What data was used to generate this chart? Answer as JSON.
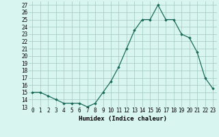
{
  "x": [
    0,
    1,
    2,
    3,
    4,
    5,
    6,
    7,
    8,
    9,
    10,
    11,
    12,
    13,
    14,
    15,
    16,
    17,
    18,
    19,
    20,
    21,
    22,
    23
  ],
  "y": [
    15,
    15,
    14.5,
    14,
    13.5,
    13.5,
    13.5,
    13,
    13.5,
    15,
    16.5,
    18.5,
    21,
    23.5,
    25,
    25,
    27,
    25,
    25,
    23,
    22.5,
    20.5,
    17,
    15.5
  ],
  "line_color": "#1a6b5a",
  "marker": "D",
  "marker_size": 1.8,
  "bg_color": "#d8f5f0",
  "grid_color": "#a0c8c0",
  "xlabel": "Humidex (Indice chaleur)",
  "ylim": [
    13,
    27.5
  ],
  "xlim": [
    -0.5,
    23.5
  ],
  "yticks": [
    13,
    14,
    15,
    16,
    17,
    18,
    19,
    20,
    21,
    22,
    23,
    24,
    25,
    26,
    27
  ],
  "xticks": [
    0,
    1,
    2,
    3,
    4,
    5,
    6,
    7,
    8,
    9,
    10,
    11,
    12,
    13,
    14,
    15,
    16,
    17,
    18,
    19,
    20,
    21,
    22,
    23
  ],
  "tick_fontsize": 5.5,
  "label_fontsize": 6.5
}
